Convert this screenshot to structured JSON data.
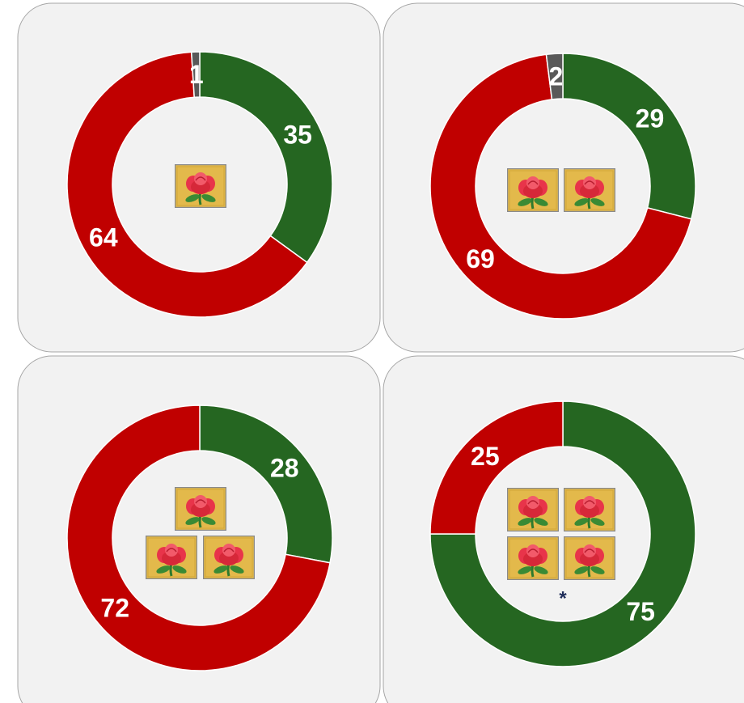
{
  "chart_data": [
    {
      "type": "pie",
      "values": [
        35,
        64,
        1
      ],
      "colors": [
        "#256621",
        "#c00000",
        "#595959"
      ]
    },
    {
      "type": "pie",
      "values": [
        29,
        69,
        2
      ],
      "colors": [
        "#256621",
        "#c00000",
        "#595959"
      ]
    },
    {
      "type": "pie",
      "values": [
        28,
        72
      ],
      "colors": [
        "#256621",
        "#c00000"
      ]
    },
    {
      "type": "pie",
      "values": [
        75,
        25
      ],
      "colors": [
        "#256621",
        "#c00000"
      ],
      "annotation": "*"
    }
  ]
}
